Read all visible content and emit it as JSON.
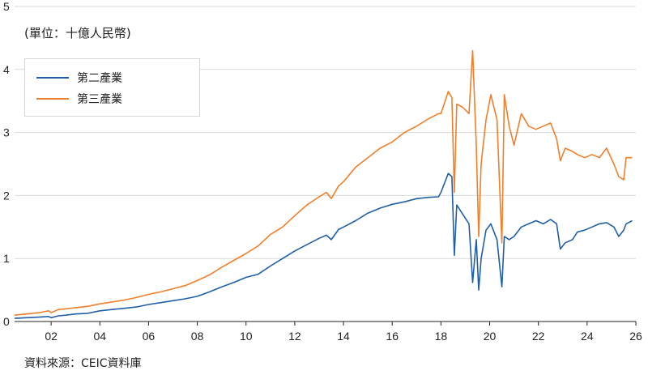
{
  "unit_label": "(單位：十億人民幣)",
  "source": "資料來源：CEIC資料庫",
  "colors": {
    "secondary": "#1f5fa8",
    "tertiary": "#f07f2b",
    "grid": "#d9d9d9",
    "axis": "#222222"
  },
  "chart_data": {
    "type": "line",
    "title": "",
    "xlabel": "",
    "ylabel": "",
    "xlim": [
      2000.5,
      2026.0
    ],
    "ylim": [
      0,
      5
    ],
    "y_ticks": [
      0,
      1,
      2,
      3,
      4,
      5
    ],
    "x_ticks": [
      2002,
      2004,
      2006,
      2008,
      2010,
      2012,
      2014,
      2016,
      2018,
      2020,
      2022,
      2024,
      2026
    ],
    "x_tick_labels": [
      "02",
      "04",
      "06",
      "08",
      "10",
      "12",
      "14",
      "16",
      "18",
      "20",
      "22",
      "24",
      "26"
    ],
    "grid": "horizontal",
    "legend_position": "top-left",
    "series": [
      {
        "name": "第二產業",
        "color": "#1f5fa8",
        "points": [
          [
            2000.5,
            0.05
          ],
          [
            2001.0,
            0.06
          ],
          [
            2001.5,
            0.07
          ],
          [
            2001.9,
            0.08
          ],
          [
            2002.0,
            0.06
          ],
          [
            2002.3,
            0.09
          ],
          [
            2002.6,
            0.1
          ],
          [
            2003.0,
            0.12
          ],
          [
            2003.5,
            0.13
          ],
          [
            2004.0,
            0.17
          ],
          [
            2004.5,
            0.19
          ],
          [
            2005.0,
            0.21
          ],
          [
            2005.5,
            0.23
          ],
          [
            2006.0,
            0.27
          ],
          [
            2006.5,
            0.3
          ],
          [
            2007.0,
            0.33
          ],
          [
            2007.5,
            0.36
          ],
          [
            2008.0,
            0.4
          ],
          [
            2008.5,
            0.47
          ],
          [
            2009.0,
            0.55
          ],
          [
            2009.5,
            0.62
          ],
          [
            2010.0,
            0.7
          ],
          [
            2010.5,
            0.75
          ],
          [
            2011.0,
            0.88
          ],
          [
            2011.5,
            1.0
          ],
          [
            2012.0,
            1.12
          ],
          [
            2012.5,
            1.22
          ],
          [
            2013.0,
            1.32
          ],
          [
            2013.3,
            1.37
          ],
          [
            2013.5,
            1.3
          ],
          [
            2013.8,
            1.46
          ],
          [
            2014.0,
            1.5
          ],
          [
            2014.5,
            1.6
          ],
          [
            2015.0,
            1.72
          ],
          [
            2015.5,
            1.8
          ],
          [
            2016.0,
            1.86
          ],
          [
            2016.5,
            1.9
          ],
          [
            2017.0,
            1.95
          ],
          [
            2017.5,
            1.97
          ],
          [
            2017.9,
            1.98
          ],
          [
            2018.0,
            2.05
          ],
          [
            2018.3,
            2.35
          ],
          [
            2018.45,
            2.3
          ],
          [
            2018.55,
            1.05
          ],
          [
            2018.65,
            1.85
          ],
          [
            2018.9,
            1.7
          ],
          [
            2019.15,
            1.55
          ],
          [
            2019.3,
            0.62
          ],
          [
            2019.45,
            1.3
          ],
          [
            2019.55,
            0.5
          ],
          [
            2019.65,
            1.0
          ],
          [
            2019.85,
            1.45
          ],
          [
            2020.05,
            1.55
          ],
          [
            2020.3,
            1.3
          ],
          [
            2020.5,
            0.55
          ],
          [
            2020.6,
            1.35
          ],
          [
            2020.8,
            1.3
          ],
          [
            2021.0,
            1.35
          ],
          [
            2021.3,
            1.5
          ],
          [
            2021.6,
            1.55
          ],
          [
            2021.9,
            1.6
          ],
          [
            2022.2,
            1.55
          ],
          [
            2022.5,
            1.62
          ],
          [
            2022.75,
            1.55
          ],
          [
            2022.9,
            1.15
          ],
          [
            2023.1,
            1.25
          ],
          [
            2023.4,
            1.3
          ],
          [
            2023.6,
            1.42
          ],
          [
            2023.9,
            1.45
          ],
          [
            2024.2,
            1.5
          ],
          [
            2024.5,
            1.55
          ],
          [
            2024.8,
            1.57
          ],
          [
            2025.1,
            1.5
          ],
          [
            2025.3,
            1.35
          ],
          [
            2025.5,
            1.45
          ],
          [
            2025.6,
            1.55
          ],
          [
            2025.85,
            1.6
          ]
        ]
      },
      {
        "name": "第三產業",
        "color": "#f07f2b",
        "points": [
          [
            2000.5,
            0.1
          ],
          [
            2001.0,
            0.12
          ],
          [
            2001.5,
            0.14
          ],
          [
            2001.9,
            0.17
          ],
          [
            2002.0,
            0.14
          ],
          [
            2002.3,
            0.19
          ],
          [
            2002.6,
            0.2
          ],
          [
            2003.0,
            0.22
          ],
          [
            2003.5,
            0.24
          ],
          [
            2004.0,
            0.28
          ],
          [
            2004.5,
            0.31
          ],
          [
            2005.0,
            0.34
          ],
          [
            2005.5,
            0.38
          ],
          [
            2006.0,
            0.43
          ],
          [
            2006.5,
            0.47
          ],
          [
            2007.0,
            0.52
          ],
          [
            2007.5,
            0.57
          ],
          [
            2008.0,
            0.65
          ],
          [
            2008.5,
            0.74
          ],
          [
            2009.0,
            0.86
          ],
          [
            2009.5,
            0.97
          ],
          [
            2010.0,
            1.08
          ],
          [
            2010.5,
            1.2
          ],
          [
            2011.0,
            1.38
          ],
          [
            2011.5,
            1.5
          ],
          [
            2012.0,
            1.68
          ],
          [
            2012.5,
            1.85
          ],
          [
            2013.0,
            1.98
          ],
          [
            2013.3,
            2.05
          ],
          [
            2013.5,
            1.95
          ],
          [
            2013.8,
            2.15
          ],
          [
            2014.0,
            2.22
          ],
          [
            2014.5,
            2.45
          ],
          [
            2015.0,
            2.6
          ],
          [
            2015.5,
            2.75
          ],
          [
            2016.0,
            2.85
          ],
          [
            2016.5,
            3.0
          ],
          [
            2017.0,
            3.1
          ],
          [
            2017.5,
            3.22
          ],
          [
            2017.9,
            3.3
          ],
          [
            2018.0,
            3.3
          ],
          [
            2018.3,
            3.65
          ],
          [
            2018.45,
            3.55
          ],
          [
            2018.55,
            2.05
          ],
          [
            2018.65,
            3.45
          ],
          [
            2018.9,
            3.4
          ],
          [
            2019.15,
            3.3
          ],
          [
            2019.3,
            4.3
          ],
          [
            2019.45,
            2.8
          ],
          [
            2019.55,
            1.35
          ],
          [
            2019.65,
            2.5
          ],
          [
            2019.85,
            3.2
          ],
          [
            2020.05,
            3.6
          ],
          [
            2020.3,
            3.2
          ],
          [
            2020.5,
            1.25
          ],
          [
            2020.6,
            3.6
          ],
          [
            2020.8,
            3.1
          ],
          [
            2021.0,
            2.8
          ],
          [
            2021.3,
            3.3
          ],
          [
            2021.6,
            3.1
          ],
          [
            2021.9,
            3.05
          ],
          [
            2022.2,
            3.1
          ],
          [
            2022.5,
            3.15
          ],
          [
            2022.75,
            2.9
          ],
          [
            2022.9,
            2.55
          ],
          [
            2023.1,
            2.75
          ],
          [
            2023.4,
            2.7
          ],
          [
            2023.6,
            2.65
          ],
          [
            2023.9,
            2.6
          ],
          [
            2024.2,
            2.65
          ],
          [
            2024.5,
            2.6
          ],
          [
            2024.8,
            2.75
          ],
          [
            2025.1,
            2.5
          ],
          [
            2025.3,
            2.3
          ],
          [
            2025.5,
            2.25
          ],
          [
            2025.6,
            2.6
          ],
          [
            2025.85,
            2.6
          ]
        ]
      }
    ]
  }
}
